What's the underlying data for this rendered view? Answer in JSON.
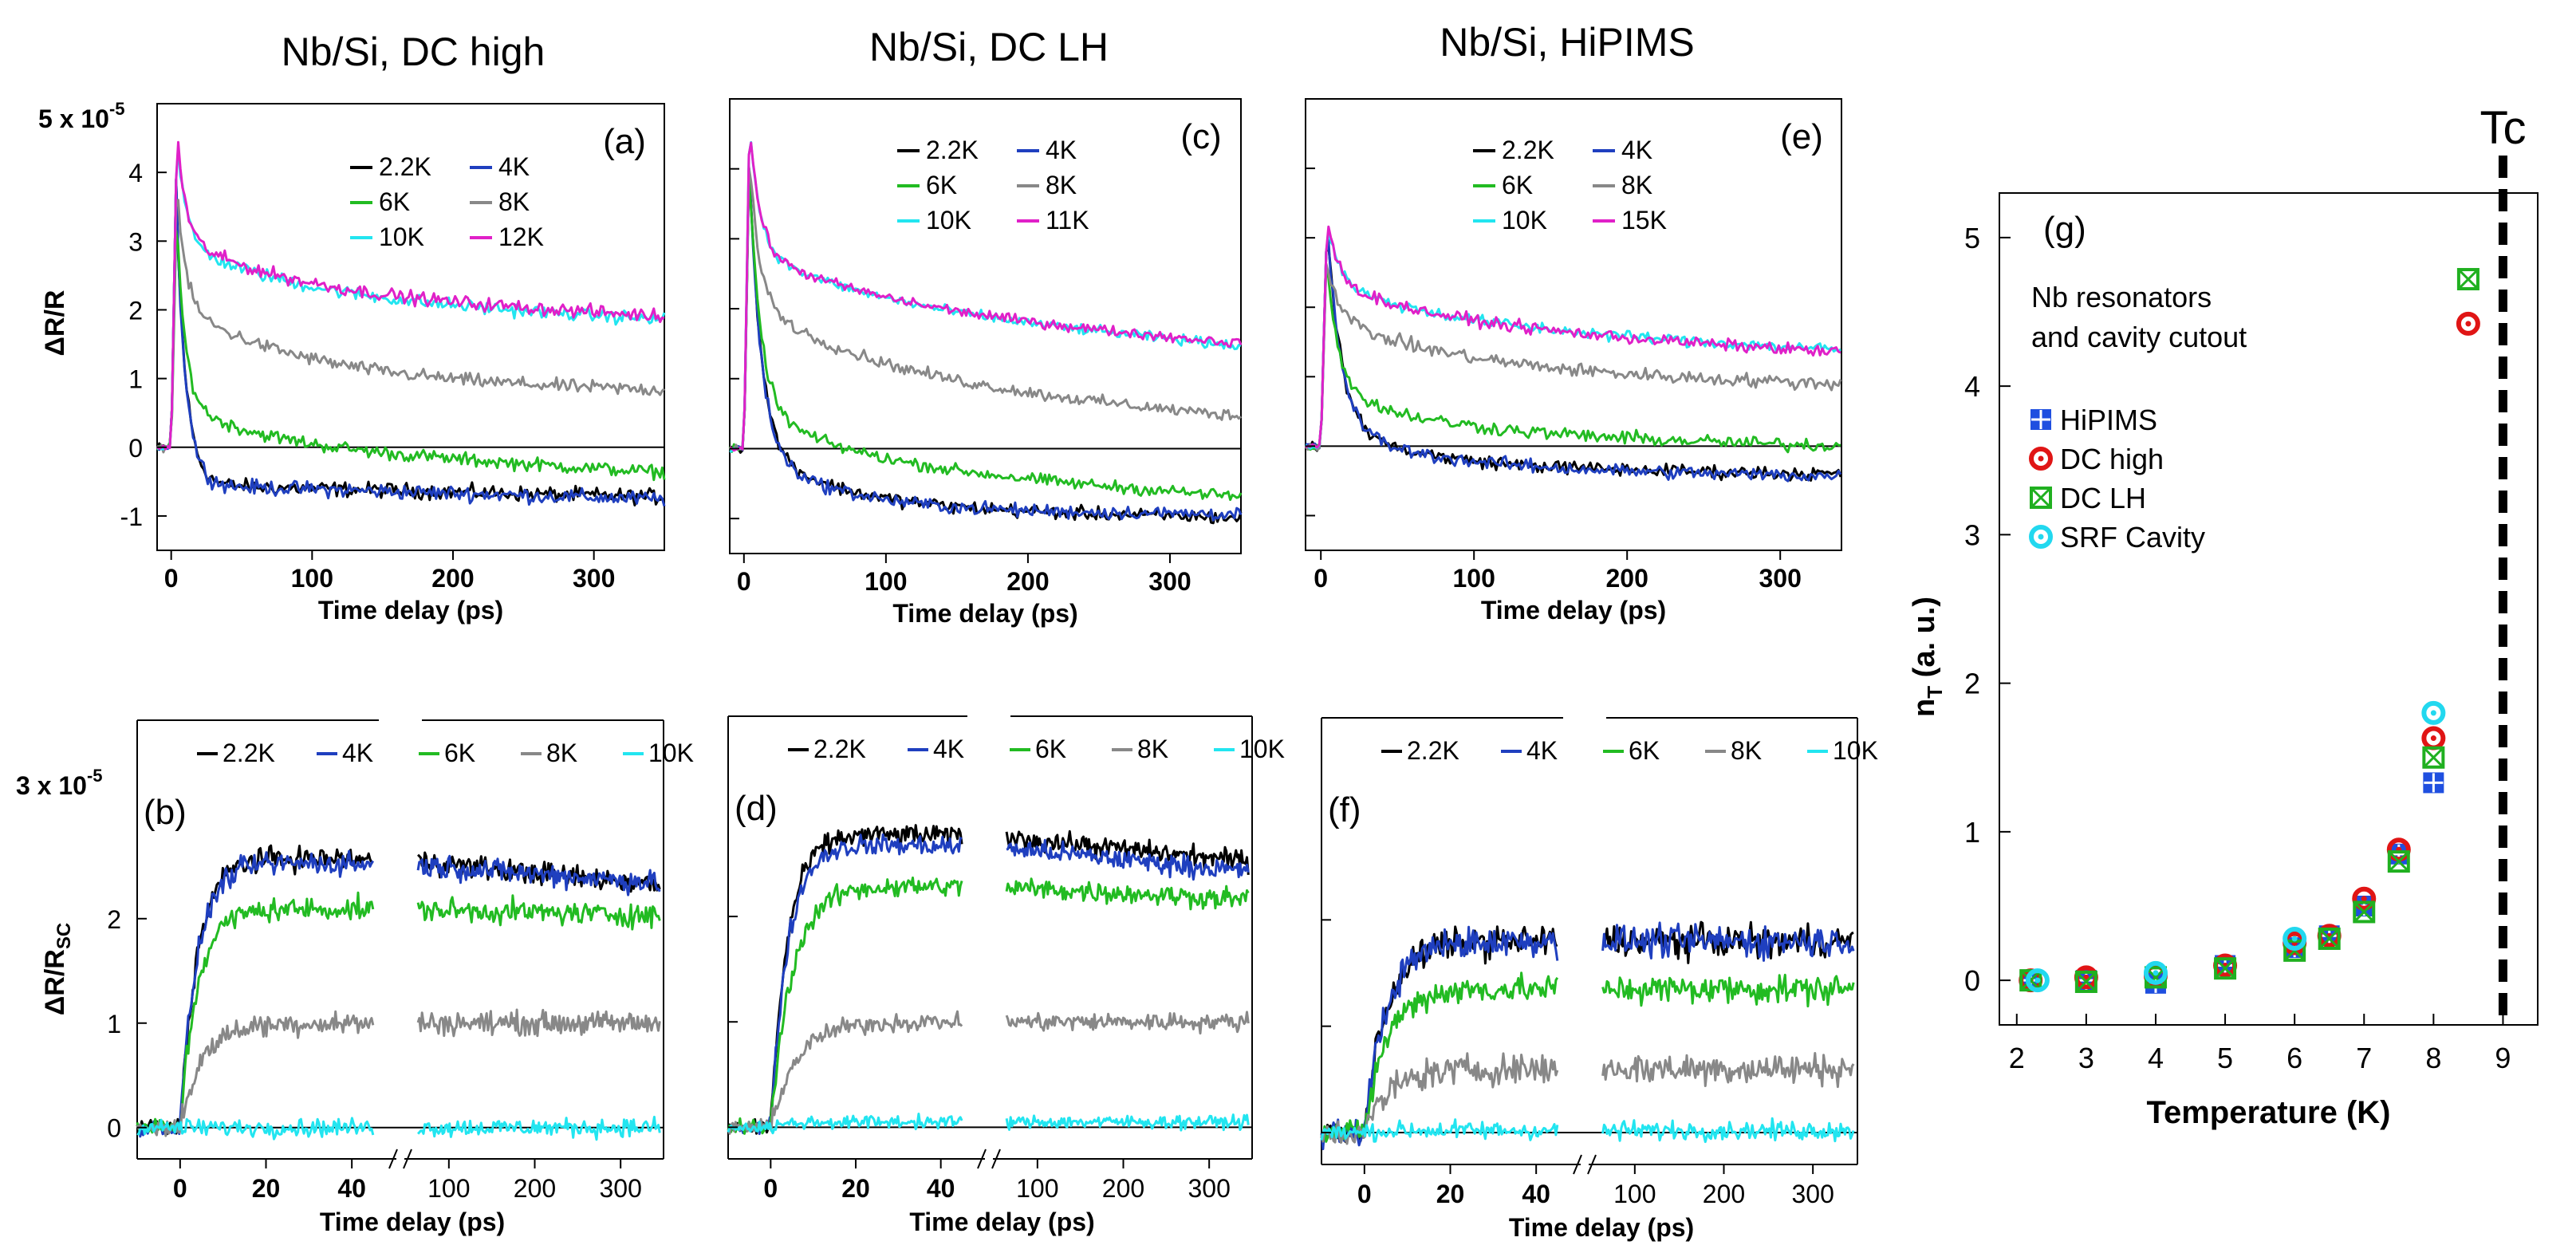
{
  "figure": {
    "col_titles": [
      "Nb/Si, DC high",
      "Nb/Si, DC LH",
      "Nb/Si, HiPIMS"
    ],
    "xlabel": "Time delay (ps)",
    "top_ylabel": "ΔR/R",
    "bottom_ylabel_main": "ΔR/R",
    "bottom_ylabel_sub": "SC",
    "top_scale_label": "5 x 10",
    "bottom_scale_label": "3 x 10",
    "scale_exponent": "-5",
    "top_yticks": [
      "4",
      "3",
      "2",
      "1",
      "0",
      "-1"
    ],
    "bottom_yticks": [
      "2",
      "1",
      "0"
    ],
    "top_xticks": [
      "0",
      "100",
      "200",
      "300"
    ],
    "bottom_xticks_left": [
      "0",
      "20",
      "40"
    ],
    "bottom_xticks_right": [
      "100",
      "200",
      "300"
    ]
  },
  "colors": {
    "2.2K": "#000000",
    "4K": "#1f3fbf",
    "6K": "#22bb22",
    "8K": "#888888",
    "10K": "#22e5f0",
    "11K": "#e020c8",
    "12K": "#e020c8",
    "15K": "#e020c8"
  },
  "chart_data": [
    {
      "id": "a",
      "panel_label": "(a)",
      "type": "line",
      "title": "Nb/Si, DC high",
      "xlabel": "Time delay (ps)",
      "ylabel": "ΔR/R (x 10^-5)",
      "xlim": [
        -10,
        350
      ],
      "ylim": [
        -1.5,
        5
      ],
      "legend": [
        "2.2K",
        "4K",
        "6K",
        "8K",
        "10K",
        "12K"
      ],
      "series": [
        {
          "name": "2.2K",
          "peak": 4.45,
          "a1": 3.85,
          "t1": 7,
          "a2": 0.0,
          "t2": 100,
          "offset": -0.55,
          "slope": -0.0005,
          "noise": 0.09
        },
        {
          "name": "4K",
          "peak": 4.45,
          "a1": 3.85,
          "t1": 7,
          "a2": 0.0,
          "t2": 100,
          "offset": -0.55,
          "slope": -0.0006,
          "noise": 0.09
        },
        {
          "name": "6K",
          "peak": 3.6,
          "a1": 2.6,
          "t1": 6,
          "a2": 0.6,
          "t2": 60,
          "offset": 0.05,
          "slope": -0.0012,
          "noise": 0.08
        },
        {
          "name": "8K",
          "peak": 4.0,
          "a1": 1.8,
          "t1": 6,
          "a2": 1.1,
          "t2": 90,
          "offset": 0.95,
          "slope": -0.0004,
          "noise": 0.08
        },
        {
          "name": "10K",
          "peak": 4.45,
          "a1": 1.6,
          "t1": 6,
          "a2": 0.8,
          "t2": 80,
          "offset": 2.2,
          "slope": -0.001,
          "noise": 0.08
        },
        {
          "name": "12K",
          "peak": 4.45,
          "a1": 1.6,
          "t1": 6,
          "a2": 0.8,
          "t2": 80,
          "offset": 2.25,
          "slope": -0.001,
          "noise": 0.08
        }
      ]
    },
    {
      "id": "c",
      "panel_label": "(c)",
      "type": "line",
      "title": "Nb/Si, DC LH",
      "xlabel": "Time delay (ps)",
      "ylabel": "ΔR/R (x 10^-5)",
      "xlim": [
        -10,
        350
      ],
      "ylim": [
        -1.5,
        5
      ],
      "legend": [
        "2.2K",
        "4K",
        "6K",
        "8K",
        "10K",
        "11K"
      ],
      "series": [
        {
          "name": "2.2K",
          "peak": 4.6,
          "a1": 4.0,
          "t1": 8,
          "a2": 0.9,
          "t2": 60,
          "offset": -0.85,
          "slope": -0.0004,
          "noise": 0.08
        },
        {
          "name": "4K",
          "peak": 4.6,
          "a1": 4.0,
          "t1": 8,
          "a2": 0.9,
          "t2": 60,
          "offset": -0.9,
          "slope": -0.0001,
          "noise": 0.08
        },
        {
          "name": "6K",
          "peak": 4.4,
          "a1": 3.2,
          "t1": 8,
          "a2": 0.8,
          "t2": 70,
          "offset": -0.2,
          "slope": -0.0014,
          "noise": 0.07
        },
        {
          "name": "8K",
          "peak": 4.6,
          "a1": 2.0,
          "t1": 7,
          "a2": 1.1,
          "t2": 90,
          "offset": 1.0,
          "slope": -0.0016,
          "noise": 0.07
        },
        {
          "name": "10K",
          "peak": 4.8,
          "a1": 1.8,
          "t1": 7,
          "a2": 0.8,
          "t2": 90,
          "offset": 2.05,
          "slope": -0.0017,
          "noise": 0.06
        },
        {
          "name": "11K",
          "peak": 4.8,
          "a1": 1.8,
          "t1": 7,
          "a2": 0.8,
          "t2": 90,
          "offset": 2.05,
          "slope": -0.0016,
          "noise": 0.06
        }
      ]
    },
    {
      "id": "e",
      "panel_label": "(e)",
      "type": "line",
      "title": "Nb/Si, HiPIMS",
      "xlabel": "Time delay (ps)",
      "ylabel": "ΔR/R (x 10^-5)",
      "xlim": [
        -10,
        340
      ],
      "ylim": [
        -1.5,
        5
      ],
      "legend": [
        "2.2K",
        "4K",
        "6K",
        "8K",
        "10K",
        "15K"
      ],
      "series": [
        {
          "name": "2.2K",
          "peak": 3.2,
          "a1": 2.9,
          "t1": 9,
          "a2": 0.6,
          "t2": 60,
          "offset": -0.3,
          "slope": -0.0003,
          "noise": 0.08
        },
        {
          "name": "4K",
          "peak": 3.2,
          "a1": 2.9,
          "t1": 9,
          "a2": 0.6,
          "t2": 60,
          "offset": -0.3,
          "slope": -0.0004,
          "noise": 0.08
        },
        {
          "name": "6K",
          "peak": 3.0,
          "a1": 1.8,
          "t1": 8,
          "a2": 0.6,
          "t2": 70,
          "offset": 0.2,
          "slope": -0.0006,
          "noise": 0.08
        },
        {
          "name": "8K",
          "peak": 3.0,
          "a1": 0.8,
          "t1": 8,
          "a2": 0.8,
          "t2": 90,
          "offset": 1.05,
          "slope": -0.0005,
          "noise": 0.08
        },
        {
          "name": "10K",
          "peak": 3.2,
          "a1": 0.9,
          "t1": 8,
          "a2": 0.6,
          "t2": 80,
          "offset": 1.75,
          "slope": -0.0011,
          "noise": 0.07
        },
        {
          "name": "15K",
          "peak": 3.2,
          "a1": 0.9,
          "t1": 8,
          "a2": 0.6,
          "t2": 80,
          "offset": 1.75,
          "slope": -0.0012,
          "noise": 0.07
        }
      ]
    },
    {
      "id": "b",
      "panel_label": "(b)",
      "type": "line",
      "title": "",
      "xlabel": "Time delay (ps)",
      "ylabel": "ΔR/R_SC (x 10^-5)",
      "xlim_left": [
        -10,
        50
      ],
      "xlim_right": [
        50,
        350
      ],
      "ylim": [
        -0.3,
        3.9
      ],
      "legend": [
        "2.2K",
        "4K",
        "6K",
        "8K",
        "10K"
      ],
      "series": [
        {
          "name": "2.2K",
          "plateau": 2.6,
          "rise": 4,
          "slope": -0.0008,
          "noise": 0.09
        },
        {
          "name": "4K",
          "plateau": 2.55,
          "rise": 4,
          "slope": -0.0006,
          "noise": 0.09
        },
        {
          "name": "6K",
          "plateau": 2.1,
          "rise": 4,
          "slope": -0.0002,
          "noise": 0.09
        },
        {
          "name": "8K",
          "plateau": 1.0,
          "rise": 5,
          "slope": 0.0,
          "noise": 0.09
        },
        {
          "name": "10K",
          "plateau": 0.0,
          "rise": 4,
          "slope": 0.0,
          "noise": 0.07
        }
      ]
    },
    {
      "id": "d",
      "panel_label": "(d)",
      "type": "line",
      "title": "",
      "xlabel": "Time delay (ps)",
      "ylabel": "ΔR/R_SC (x 10^-5)",
      "xlim_left": [
        -10,
        50
      ],
      "xlim_right": [
        50,
        350
      ],
      "ylim": [
        -0.3,
        3.9
      ],
      "legend": [
        "2.2K",
        "4K",
        "6K",
        "8K",
        "10K"
      ],
      "series": [
        {
          "name": "2.2K",
          "plateau": 2.8,
          "rise": 4,
          "slope": -0.0008,
          "noise": 0.08
        },
        {
          "name": "4K",
          "plateau": 2.7,
          "rise": 4,
          "slope": -0.0008,
          "noise": 0.08
        },
        {
          "name": "6K",
          "plateau": 2.3,
          "rise": 5,
          "slope": -0.0004,
          "noise": 0.08
        },
        {
          "name": "8K",
          "plateau": 1.0,
          "rise": 6,
          "slope": 0.0,
          "noise": 0.07
        },
        {
          "name": "10K",
          "plateau": 0.05,
          "rise": 4,
          "slope": 0.0,
          "noise": 0.05
        }
      ]
    },
    {
      "id": "f",
      "panel_label": "(f)",
      "type": "line",
      "title": "",
      "xlabel": "Time delay (ps)",
      "ylabel": "ΔR/R_SC (x 10^-5)",
      "xlim_left": [
        -10,
        50
      ],
      "xlim_right": [
        50,
        350
      ],
      "ylim": [
        -0.3,
        3.9
      ],
      "legend": [
        "2.2K",
        "4K",
        "6K",
        "8K",
        "10K"
      ],
      "series": [
        {
          "name": "2.2K",
          "plateau": 1.8,
          "rise": 5,
          "slope": 0.0,
          "noise": 0.12
        },
        {
          "name": "4K",
          "plateau": 1.8,
          "rise": 5,
          "slope": 0.0,
          "noise": 0.12
        },
        {
          "name": "6K",
          "plateau": 1.35,
          "rise": 5,
          "slope": 0.0,
          "noise": 0.11
        },
        {
          "name": "8K",
          "plateau": 0.6,
          "rise": 6,
          "slope": 0.0,
          "noise": 0.12
        },
        {
          "name": "10K",
          "plateau": 0.02,
          "rise": 4,
          "slope": 0.0,
          "noise": 0.07
        }
      ]
    },
    {
      "id": "g",
      "panel_label": "(g)",
      "type": "scatter",
      "title": "Nb resonators and cavity cutout",
      "annotation_lines": [
        "Nb resonators",
        "and cavity cutout"
      ],
      "xlabel": "Temperature (K)",
      "ylabel_main": "n",
      "ylabel_sub": "T",
      "ylabel_tail": " (a. u.)",
      "xlim": [
        1.75,
        9.5
      ],
      "ylim": [
        -0.3,
        5.3
      ],
      "xticks": [
        2,
        3,
        4,
        5,
        6,
        7,
        8,
        9
      ],
      "yticks": [
        0,
        1,
        2,
        3,
        4,
        5
      ],
      "vline": {
        "x": 9,
        "label": "Tc"
      },
      "series": [
        {
          "name": "HiPIMS",
          "marker": "grid-square",
          "color": "#1f4fe0",
          "x": [
            2.2,
            3,
            4,
            5,
            6,
            6.5,
            7,
            7.5,
            8
          ],
          "y": [
            0.0,
            0.0,
            -0.02,
            0.1,
            0.22,
            0.3,
            0.5,
            0.85,
            1.33
          ]
        },
        {
          "name": "DC high",
          "marker": "dot-circle",
          "color": "#e01515",
          "x": [
            2.2,
            3,
            4,
            5,
            6,
            6.5,
            7,
            7.5,
            8,
            8.5
          ],
          "y": [
            0.0,
            0.02,
            0.03,
            0.1,
            0.25,
            0.3,
            0.55,
            0.88,
            1.63,
            4.42
          ]
        },
        {
          "name": "DC LH",
          "marker": "x-square",
          "color": "#20b020",
          "x": [
            2.2,
            3,
            4,
            5,
            6,
            6.5,
            7,
            7.5,
            8,
            8.5
          ],
          "y": [
            0.0,
            -0.01,
            0.02,
            0.08,
            0.2,
            0.28,
            0.46,
            0.8,
            1.5,
            4.72
          ]
        },
        {
          "name": "SRF Cavity",
          "marker": "dot-circle",
          "color": "#22d8ef",
          "x": [
            2.3,
            4,
            6,
            8
          ],
          "y": [
            0.0,
            0.05,
            0.28,
            1.8
          ]
        }
      ]
    }
  ]
}
